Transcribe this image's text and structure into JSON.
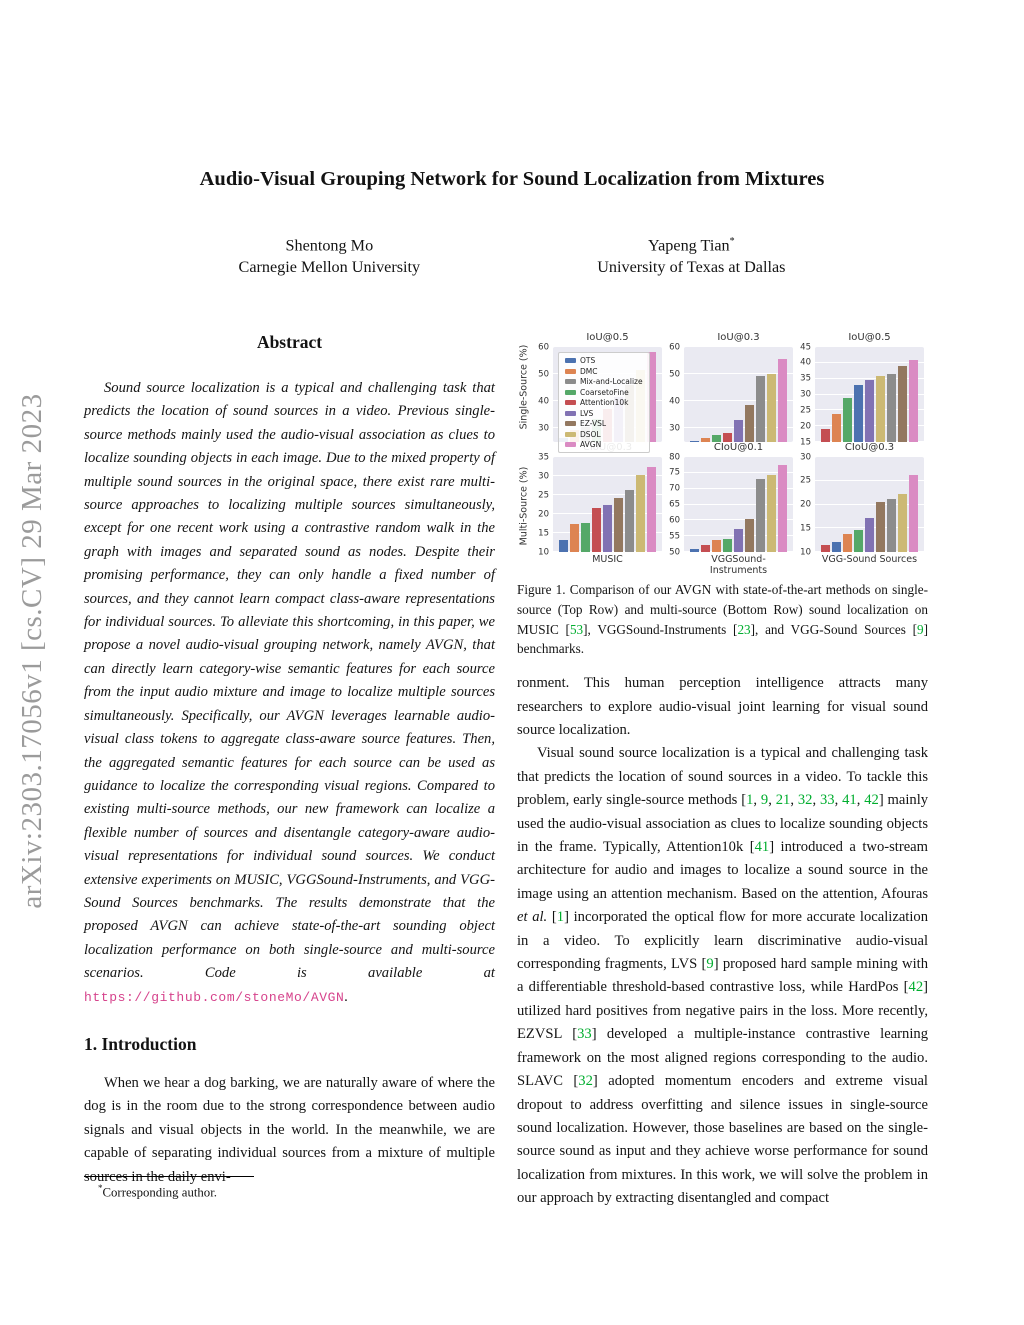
{
  "arxiv_watermark": "arXiv:2303.17056v1  [cs.CV]  29 Mar 2023",
  "title": "Audio-Visual Grouping Network for Sound Localization from Mixtures",
  "authors": [
    {
      "name": "Shentong Mo",
      "sup": "",
      "affiliation": "Carnegie Mellon University"
    },
    {
      "name": "Yapeng Tian",
      "sup": "*",
      "affiliation": "University of Texas at Dallas"
    }
  ],
  "abstract": {
    "heading": "Abstract",
    "segments": [
      {
        "t": "Sound source localization is a typical and challenging task that predicts the location of sound sources in a video. Previous single-source methods mainly used the audio-visual association as clues to localize sounding objects in each image. Due to the mixed property of multiple sound sources in the original space, there exist rare multi-source approaches to localizing multiple sources simultaneously, except for one recent work using a contrastive random walk in the graph with images and separated sound as nodes. Despite their promising performance, they can only handle a fixed number of sources, and they cannot learn compact class-aware representations for individual sources. To alleviate this shortcoming, in this paper, we propose a novel audio-visual grouping network, namely AVGN, that can directly learn category-wise semantic features for each source from the input audio mixture and image to localize multiple sources simultaneously. Specifically, our AVGN leverages learnable audio-visual class tokens to aggregate class-aware source features. Then, the aggregated semantic features for each source can be used as guidance to localize the corresponding visual regions. Compared to existing multi-source methods, our new framework can localize a flexible number of sources and disentangle category-aware audio-visual representations for individual sound sources. We conduct extensive experiments on MUSIC, VGGSound-Instruments, and VGG-Sound Sources benchmarks. The results demonstrate that the proposed AVGN can achieve state-of-the-art sounding object localization performance on both single-source and multi-source scenarios. Code is available at "
      },
      {
        "t": "https://github.com/stoneMo/AVGN",
        "s": "link"
      },
      {
        "t": "."
      }
    ]
  },
  "introduction": {
    "heading": "1. Introduction",
    "paragraph": "When we hear a dog barking, we are naturally aware of where the dog is in the room due to the strong correspondence between audio signals and visual objects in the world. In the meanwhile, we are capable of separating individual sources from a mixture of multiple sources in the daily envi-"
  },
  "footnote": {
    "marker": "*",
    "text": "Corresponding author."
  },
  "figure": {
    "row_labels": [
      "Single-Source (%)",
      "Multi-Source (%)"
    ],
    "legend": [
      "OTS",
      "DMC",
      "Mix-and-Localize",
      "CoarsetoFine",
      "Attention10k",
      "LVS",
      "EZ-VSL",
      "DSOL",
      "AVGN"
    ],
    "method_colors": {
      "OTS": "#4C72B0",
      "DMC": "#DD8452",
      "Mix-and-Localize": "#8C8C8C",
      "CoarsetoFine": "#55A868",
      "Attention10k": "#C44E52",
      "LVS": "#8172B3",
      "EZ-VSL": "#937860",
      "DSOL": "#CCB974",
      "AVGN": "#DA8BC3"
    },
    "caption_segments": [
      {
        "t": "Figure 1. Comparison of our AVGN with state-of-the-art methods on single-source (Top Row) and multi-source (Bottom Row) sound localization on MUSIC ["
      },
      {
        "t": "53",
        "s": "cite"
      },
      {
        "t": "], VGGSound-Instruments ["
      },
      {
        "t": "23",
        "s": "cite"
      },
      {
        "t": "], and VGG-Sound Sources ["
      },
      {
        "t": "9",
        "s": "cite"
      },
      {
        "t": "] benchmarks."
      }
    ]
  },
  "chart_data": [
    {
      "type": "bar",
      "title": "IoU@0.5",
      "ylabel": "Single-Source (%)",
      "xlabel": "",
      "dataset": "MUSIC",
      "ylim": [
        25,
        60
      ],
      "yticks": [
        30,
        40,
        50,
        60
      ],
      "grid": true,
      "show_legend": true,
      "legend_position": "upper left",
      "bars": [
        {
          "method": "OTS",
          "value": 26.5
        },
        {
          "method": "DMC",
          "value": 29.5
        },
        {
          "method": "Mix-and-Localize",
          "value": 30.5
        },
        {
          "method": "CoarsetoFine",
          "value": 33.5
        },
        {
          "method": "Attention10k",
          "value": 37.0
        },
        {
          "method": "LVS",
          "value": 41.5
        },
        {
          "method": "EZ-VSL",
          "value": 46.0
        },
        {
          "method": "DSOL",
          "value": 51.5
        },
        {
          "method": "AVGN",
          "value": 58.0
        }
      ]
    },
    {
      "type": "bar",
      "title": "IoU@0.3",
      "ylabel": "",
      "xlabel": "",
      "dataset": "VGGSound-Instruments",
      "ylim": [
        25,
        60
      ],
      "yticks": [
        30,
        40,
        50,
        60
      ],
      "grid": true,
      "show_legend": false,
      "bars": [
        {
          "method": "OTS",
          "value": 25.5
        },
        {
          "method": "DMC",
          "value": 26.5
        },
        {
          "method": "CoarsetoFine",
          "value": 27.5
        },
        {
          "method": "Attention10k",
          "value": 28.5
        },
        {
          "method": "LVS",
          "value": 33.0
        },
        {
          "method": "EZ-VSL",
          "value": 38.5
        },
        {
          "method": "Mix-and-Localize",
          "value": 49.5
        },
        {
          "method": "DSOL",
          "value": 50.0
        },
        {
          "method": "AVGN",
          "value": 55.5
        }
      ]
    },
    {
      "type": "bar",
      "title": "IoU@0.5",
      "ylabel": "",
      "xlabel": "",
      "dataset": "VGG-Sound Sources",
      "ylim": [
        15,
        45
      ],
      "yticks": [
        15,
        20,
        25,
        30,
        35,
        40,
        45
      ],
      "grid": true,
      "show_legend": false,
      "bars": [
        {
          "method": "Attention10k",
          "value": 19.0
        },
        {
          "method": "DMC",
          "value": 24.0
        },
        {
          "method": "CoarsetoFine",
          "value": 29.0
        },
        {
          "method": "OTS",
          "value": 33.0
        },
        {
          "method": "LVS",
          "value": 34.5
        },
        {
          "method": "DSOL",
          "value": 36.0
        },
        {
          "method": "Mix-and-Localize",
          "value": 36.5
        },
        {
          "method": "EZ-VSL",
          "value": 39.0
        },
        {
          "method": "AVGN",
          "value": 41.0
        }
      ]
    },
    {
      "type": "bar",
      "title": "CIoU@0.3",
      "ylabel": "Multi-Source (%)",
      "xlabel": "MUSIC",
      "dataset": "MUSIC",
      "ylim": [
        10,
        35
      ],
      "yticks": [
        10,
        15,
        20,
        25,
        30,
        35
      ],
      "grid": true,
      "show_legend": false,
      "bars": [
        {
          "method": "OTS",
          "value": 13.2
        },
        {
          "method": "DMC",
          "value": 17.5
        },
        {
          "method": "CoarsetoFine",
          "value": 17.7
        },
        {
          "method": "Attention10k",
          "value": 21.7
        },
        {
          "method": "LVS",
          "value": 22.5
        },
        {
          "method": "EZ-VSL",
          "value": 24.3
        },
        {
          "method": "Mix-and-Localize",
          "value": 26.4
        },
        {
          "method": "DSOL",
          "value": 30.2
        },
        {
          "method": "AVGN",
          "value": 32.4
        }
      ]
    },
    {
      "type": "bar",
      "title": "CIoU@0.1",
      "ylabel": "",
      "xlabel": "VGGSound-Instruments",
      "dataset": "VGGSound-Instruments",
      "ylim": [
        50,
        80
      ],
      "yticks": [
        50,
        55,
        60,
        65,
        70,
        75,
        80
      ],
      "grid": true,
      "show_legend": false,
      "bars": [
        {
          "method": "OTS",
          "value": 51.0
        },
        {
          "method": "Attention10k",
          "value": 52.3
        },
        {
          "method": "DMC",
          "value": 53.7
        },
        {
          "method": "CoarsetoFine",
          "value": 54.2
        },
        {
          "method": "LVS",
          "value": 57.4
        },
        {
          "method": "EZ-VSL",
          "value": 60.3
        },
        {
          "method": "Mix-and-Localize",
          "value": 73.2
        },
        {
          "method": "DSOL",
          "value": 74.3
        },
        {
          "method": "AVGN",
          "value": 77.4
        }
      ]
    },
    {
      "type": "bar",
      "title": "CIoU@0.3",
      "ylabel": "",
      "xlabel": "VGG-Sound Sources",
      "dataset": "VGG-Sound Sources",
      "ylim": [
        10,
        30
      ],
      "yticks": [
        10,
        15,
        20,
        25,
        30
      ],
      "grid": true,
      "show_legend": false,
      "bars": [
        {
          "method": "Attention10k",
          "value": 11.5
        },
        {
          "method": "OTS",
          "value": 12.2
        },
        {
          "method": "DMC",
          "value": 13.8
        },
        {
          "method": "CoarsetoFine",
          "value": 14.7
        },
        {
          "method": "LVS",
          "value": 17.2
        },
        {
          "method": "EZ-VSL",
          "value": 20.5
        },
        {
          "method": "Mix-and-Localize",
          "value": 21.1
        },
        {
          "method": "DSOL",
          "value": 22.3
        },
        {
          "method": "AVGN",
          "value": 26.2
        }
      ]
    }
  ],
  "body": {
    "col2_par1": "ronment. This human perception intelligence attracts many researchers to explore audio-visual joint learning for visual sound source localization.",
    "col2_par2_segments": [
      {
        "t": "Visual sound source localization is a typical and challenging task that predicts the location of sound sources in a video. To tackle this problem, early single-source methods ["
      },
      {
        "t": "1",
        "s": "cite"
      },
      {
        "t": ", "
      },
      {
        "t": "9",
        "s": "cite"
      },
      {
        "t": ", "
      },
      {
        "t": "21",
        "s": "cite"
      },
      {
        "t": ", "
      },
      {
        "t": "32",
        "s": "cite"
      },
      {
        "t": ", "
      },
      {
        "t": "33",
        "s": "cite"
      },
      {
        "t": ", "
      },
      {
        "t": "41",
        "s": "cite"
      },
      {
        "t": ", "
      },
      {
        "t": "42",
        "s": "cite"
      },
      {
        "t": "] mainly used the audio-visual association as clues to localize sounding objects in the frame. Typically, Attention10k ["
      },
      {
        "t": "41",
        "s": "cite"
      },
      {
        "t": "] introduced a two-stream architecture for audio and images to localize a sound source in the image using an attention mechanism. Based on the attention, Afouras "
      },
      {
        "t": "et al.",
        "s": "italic"
      },
      {
        "t": " ["
      },
      {
        "t": "1",
        "s": "cite"
      },
      {
        "t": "] incorporated the optical flow for more accurate localization in a video. To explicitly learn discriminative audio-visual corresponding fragments, LVS ["
      },
      {
        "t": "9",
        "s": "cite"
      },
      {
        "t": "] proposed hard sample mining with a differentiable threshold-based contrastive loss, while HardPos ["
      },
      {
        "t": "42",
        "s": "cite"
      },
      {
        "t": "] utilized hard positives from negative pairs in the loss. More recently, EZVSL ["
      },
      {
        "t": "33",
        "s": "cite"
      },
      {
        "t": "] developed a multiple-instance contrastive learning framework on the most aligned regions corresponding to the audio. SLAVC ["
      },
      {
        "t": "32",
        "s": "cite"
      },
      {
        "t": "] adopted momentum encoders and extreme visual dropout to address overfitting and silence issues in single-source sound localization. However, those baselines are based on the single-source sound as input and they achieve worse performance for sound localization from mixtures. In this work, we will solve the problem in our approach by extracting disentangled and compact"
      }
    ]
  }
}
